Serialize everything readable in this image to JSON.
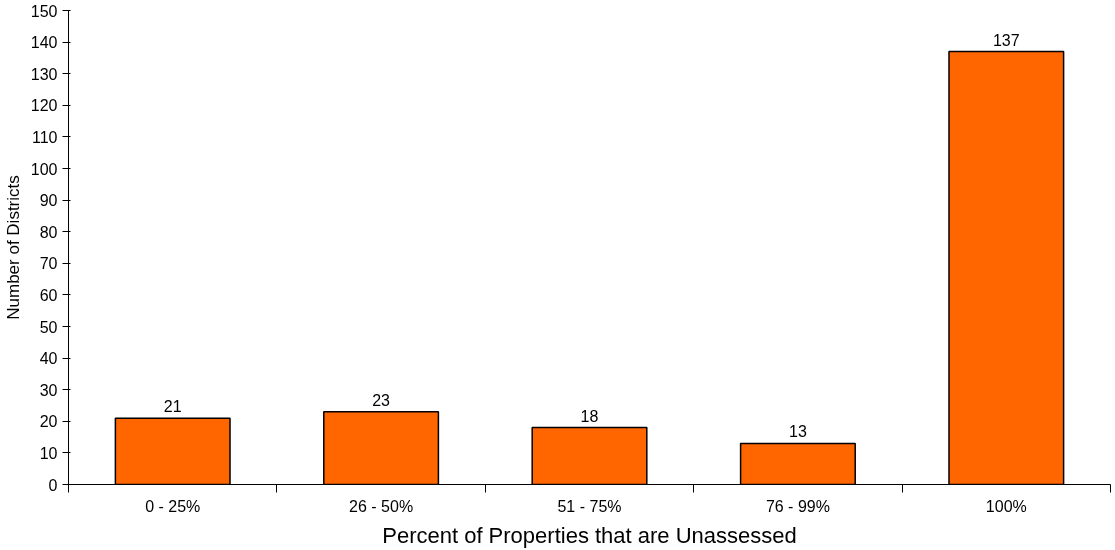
{
  "chart_data": {
    "type": "bar",
    "xlabel": "Percent of Properties that are Unassessed",
    "ylabel": "Number of Districts",
    "categories": [
      "0 - 25%",
      "26 - 50%",
      "51 - 75%",
      "76 - 99%",
      "100%"
    ],
    "values": [
      21,
      23,
      18,
      13,
      137
    ],
    "color": "#ff6600",
    "ylim": [
      0,
      150
    ],
    "yticks": [
      0,
      10,
      20,
      30,
      40,
      50,
      60,
      70,
      80,
      90,
      100,
      110,
      120,
      130,
      140,
      150
    ],
    "data_labels": true,
    "grid": false
  }
}
